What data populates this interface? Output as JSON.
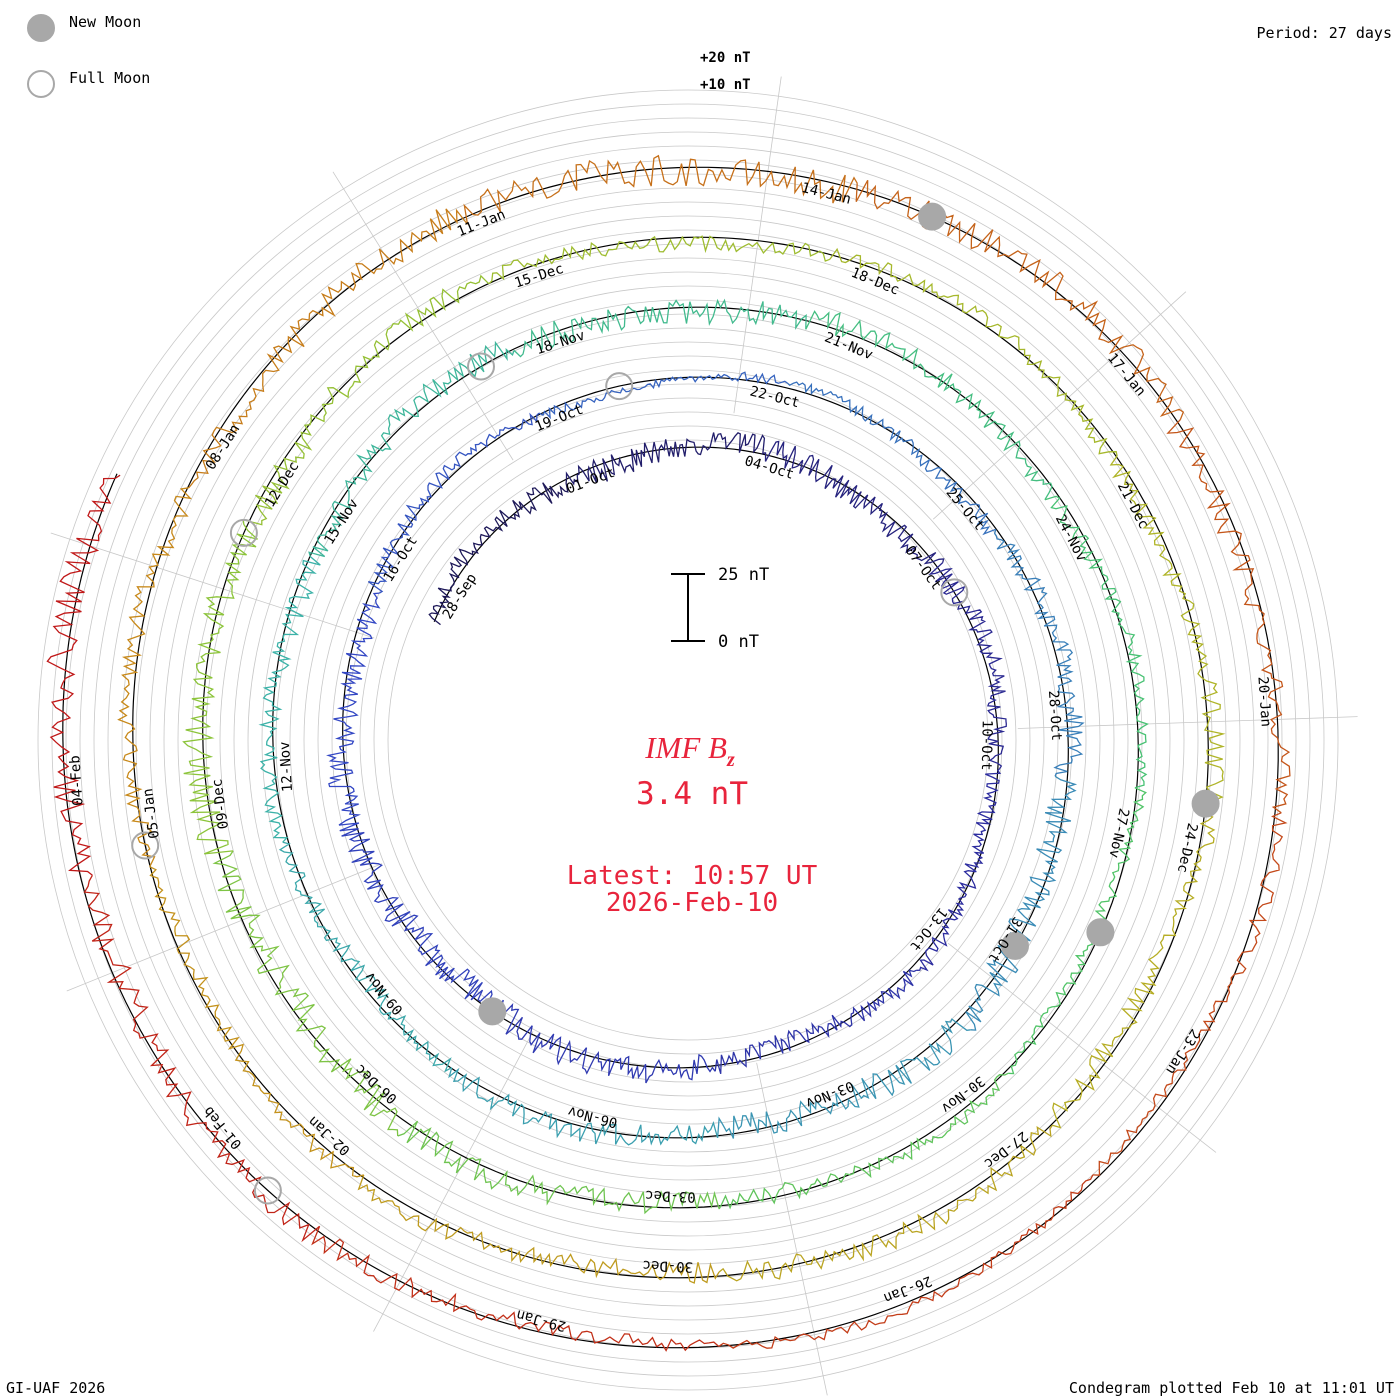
{
  "legend": {
    "new_moon_label": "New Moon",
    "full_moon_label": "Full Moon"
  },
  "period_label": "Period: 27 days",
  "footer_left": "GI-UAF 2026",
  "footer_right": "Condegram plotted Feb 10 at 11:01 UT",
  "scale": {
    "ring_labels": [
      "+20 nT",
      "+10 nT"
    ],
    "bar_top_label": "25 nT",
    "bar_bottom_label": "0 nT"
  },
  "center": {
    "title": "IMF B",
    "title_sub": "z",
    "value": "3.4 nT",
    "latest_label": "Latest: 10:57 UT",
    "latest_date": "2026-Feb-10"
  },
  "colors": {
    "rotations": [
      "#1a1446",
      "#2c2a9a",
      "#3347c4",
      "#3a86b8",
      "#3cb2a8",
      "#49c46e",
      "#8cc43a",
      "#b3b225",
      "#c88a1a",
      "#c4501a",
      "#c01818"
    ],
    "highlight_text": "#e8243c",
    "grid": "#c8c8c8",
    "baseline": "#000000",
    "moon_marker": "#a8a8a8"
  },
  "chart_data": {
    "type": "condegram",
    "title": "IMF Bz",
    "units": "nT",
    "period_days": 27,
    "rotations": [
      {
        "index": 0,
        "date_labels": [
          "28-Sep",
          "01-Oct",
          "04-Oct",
          "07-Oct",
          "10-Oct",
          "13-Oct"
        ]
      },
      {
        "index": 1,
        "date_labels": [
          "16-Oct",
          "19-Oct",
          "22-Oct",
          "25-Oct",
          "28-Oct",
          "31-Oct",
          "03-Nov",
          "06-Nov",
          "09-Nov",
          "12-Nov"
        ]
      },
      {
        "index": 2,
        "date_labels": [
          "15-Nov",
          "18-Nov",
          "21-Nov",
          "24-Nov",
          "27-Nov",
          "30-Nov",
          "03-Dec",
          "06-Dec",
          "09-Dec"
        ]
      },
      {
        "index": 3,
        "date_labels": [
          "12-Dec",
          "15-Dec",
          "18-Dec",
          "21-Dec",
          "24-Dec",
          "27-Dec",
          "30-Dec",
          "02-Jan",
          "05-Jan"
        ]
      },
      {
        "index": 4,
        "date_labels": [
          "08-Jan",
          "11-Jan",
          "14-Jan",
          "17-Jan",
          "20-Jan",
          "23-Jan",
          "26-Jan",
          "29-Jan",
          "01-Feb",
          "04-Feb"
        ]
      }
    ],
    "latest_value": 3.4,
    "latest_time": "10:57 UT",
    "latest_date": "2026-Feb-10"
  }
}
